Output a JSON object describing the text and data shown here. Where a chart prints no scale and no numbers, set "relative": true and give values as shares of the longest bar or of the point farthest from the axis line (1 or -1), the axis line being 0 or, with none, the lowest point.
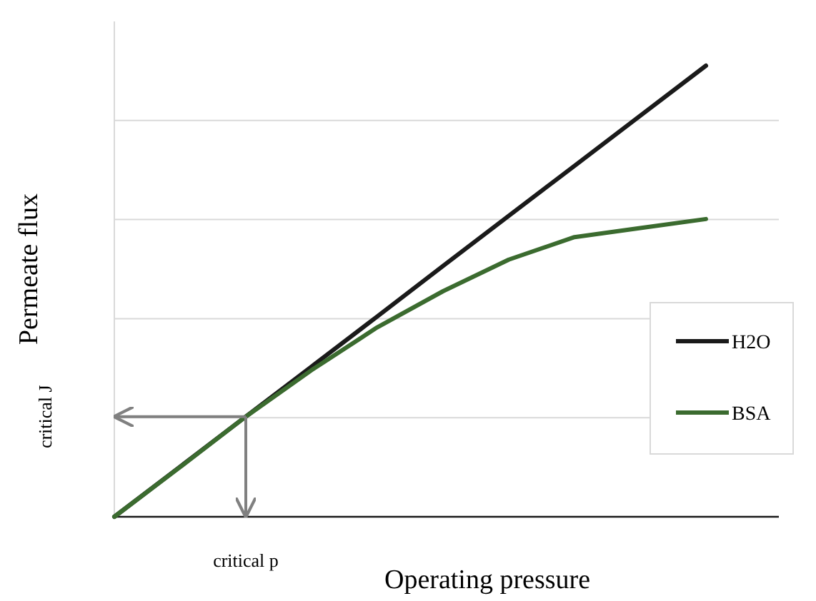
{
  "chart_data": {
    "type": "line",
    "relative": true,
    "xlabel": "Operating pressure",
    "ylabel": "Permeate flux",
    "categories": [
      null,
      null,
      null,
      null,
      null,
      null,
      null,
      null,
      null,
      null,
      null
    ],
    "series": [
      {
        "name": "H2O",
        "color": "#1a1a1a",
        "values": [
          0,
          0.111,
          0.222,
          0.333,
          0.444,
          0.556,
          0.667,
          0.778,
          0.889,
          1,
          null
        ]
      },
      {
        "name": "BSA",
        "color": "#3b6b2f",
        "values": [
          0,
          0.11,
          0.222,
          0.325,
          0.42,
          0.5,
          0.57,
          0.62,
          0.64,
          0.66,
          null
        ]
      }
    ],
    "annotations": [
      "critical J",
      "critical p"
    ],
    "grid": true,
    "legend": "right",
    "marker": "none",
    "line_style": "solid"
  }
}
